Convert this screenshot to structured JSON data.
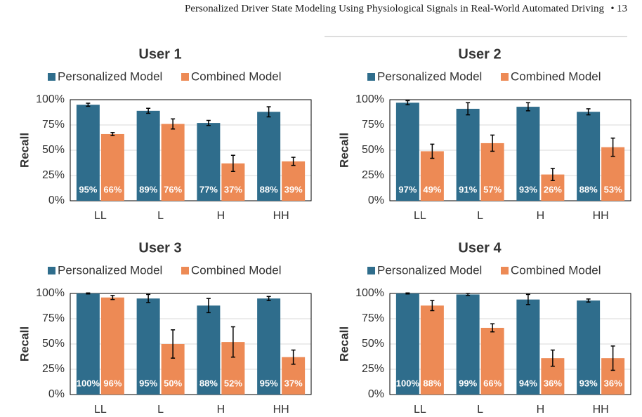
{
  "header": {
    "title": "Personalized Driver State Modeling Using Physiological Signals in Real-World Automated Driving",
    "separator": "•",
    "page": "13"
  },
  "chart_data": [
    {
      "type": "bar",
      "title": "User 1",
      "y_label": "Recall",
      "categories": [
        "LL",
        "L",
        "H",
        "HH"
      ],
      "series": [
        {
          "name": "Personalized Model",
          "color": "#2f6d8c",
          "values": [
            95,
            89,
            77,
            88
          ],
          "value_labels": [
            "95%",
            "89%",
            "77%",
            "88%"
          ],
          "errors": [
            1.5,
            2.5,
            2.5,
            5
          ]
        },
        {
          "name": "Combined Model",
          "color": "#ed8a55",
          "values": [
            66,
            76,
            37,
            39
          ],
          "value_labels": [
            "66%",
            "76%",
            "37%",
            "39%"
          ],
          "errors": [
            1.5,
            5,
            8,
            4
          ]
        }
      ],
      "ylim": [
        0,
        100
      ],
      "yticks": [
        {
          "value": 0,
          "label": "0%"
        },
        {
          "value": 25,
          "label": "25%"
        },
        {
          "value": 50,
          "label": "50%"
        },
        {
          "value": 75,
          "label": "75%"
        },
        {
          "value": 100,
          "label": "100%"
        }
      ],
      "grid": true
    },
    {
      "type": "bar",
      "title": "User 2",
      "y_label": "Recall",
      "categories": [
        "LL",
        "L",
        "H",
        "HH"
      ],
      "series": [
        {
          "name": "Personalized Model",
          "color": "#2f6d8c",
          "values": [
            97,
            91,
            93,
            88
          ],
          "value_labels": [
            "97%",
            "91%",
            "93%",
            "88%"
          ],
          "errors": [
            2,
            6,
            4,
            3
          ]
        },
        {
          "name": "Combined Model",
          "color": "#ed8a55",
          "values": [
            49,
            57,
            26,
            53
          ],
          "value_labels": [
            "49%",
            "57%",
            "26%",
            "53%"
          ],
          "errors": [
            7,
            8,
            6,
            9
          ]
        }
      ],
      "ylim": [
        0,
        100
      ],
      "yticks": [
        {
          "value": 0,
          "label": "0%"
        },
        {
          "value": 25,
          "label": "25%"
        },
        {
          "value": 50,
          "label": "50%"
        },
        {
          "value": 75,
          "label": "75%"
        },
        {
          "value": 100,
          "label": "100%"
        }
      ],
      "grid": true
    },
    {
      "type": "bar",
      "title": "User 3",
      "y_label": "Recall",
      "categories": [
        "LL",
        "L",
        "H",
        "HH"
      ],
      "series": [
        {
          "name": "Personalized Model",
          "color": "#2f6d8c",
          "values": [
            100,
            95,
            88,
            95
          ],
          "value_labels": [
            "100%",
            "95%",
            "88%",
            "95%"
          ],
          "errors": [
            0.5,
            4,
            7,
            2
          ]
        },
        {
          "name": "Combined Model",
          "color": "#ed8a55",
          "values": [
            96,
            50,
            52,
            37
          ],
          "value_labels": [
            "96%",
            "50%",
            "52%",
            "37%"
          ],
          "errors": [
            2,
            14,
            15,
            7
          ]
        }
      ],
      "ylim": [
        0,
        100
      ],
      "yticks": [
        {
          "value": 0,
          "label": "0%"
        },
        {
          "value": 25,
          "label": "25%"
        },
        {
          "value": 50,
          "label": "50%"
        },
        {
          "value": 75,
          "label": "75%"
        },
        {
          "value": 100,
          "label": "100%"
        }
      ],
      "grid": true
    },
    {
      "type": "bar",
      "title": "User 4",
      "y_label": "Recall",
      "categories": [
        "LL",
        "L",
        "H",
        "HH"
      ],
      "series": [
        {
          "name": "Personalized Model",
          "color": "#2f6d8c",
          "values": [
            100,
            99,
            94,
            93
          ],
          "value_labels": [
            "100%",
            "99%",
            "94%",
            "93%"
          ],
          "errors": [
            0.5,
            1,
            5,
            1.5
          ]
        },
        {
          "name": "Combined Model",
          "color": "#ed8a55",
          "values": [
            88,
            66,
            36,
            36
          ],
          "value_labels": [
            "88%",
            "66%",
            "36%",
            "36%"
          ],
          "errors": [
            5,
            4,
            8,
            12
          ]
        }
      ],
      "ylim": [
        0,
        100
      ],
      "yticks": [
        {
          "value": 0,
          "label": "0%"
        },
        {
          "value": 25,
          "label": "25%"
        },
        {
          "value": 50,
          "label": "50%"
        },
        {
          "value": 75,
          "label": "75%"
        },
        {
          "value": 100,
          "label": "100%"
        }
      ],
      "grid": true
    }
  ]
}
